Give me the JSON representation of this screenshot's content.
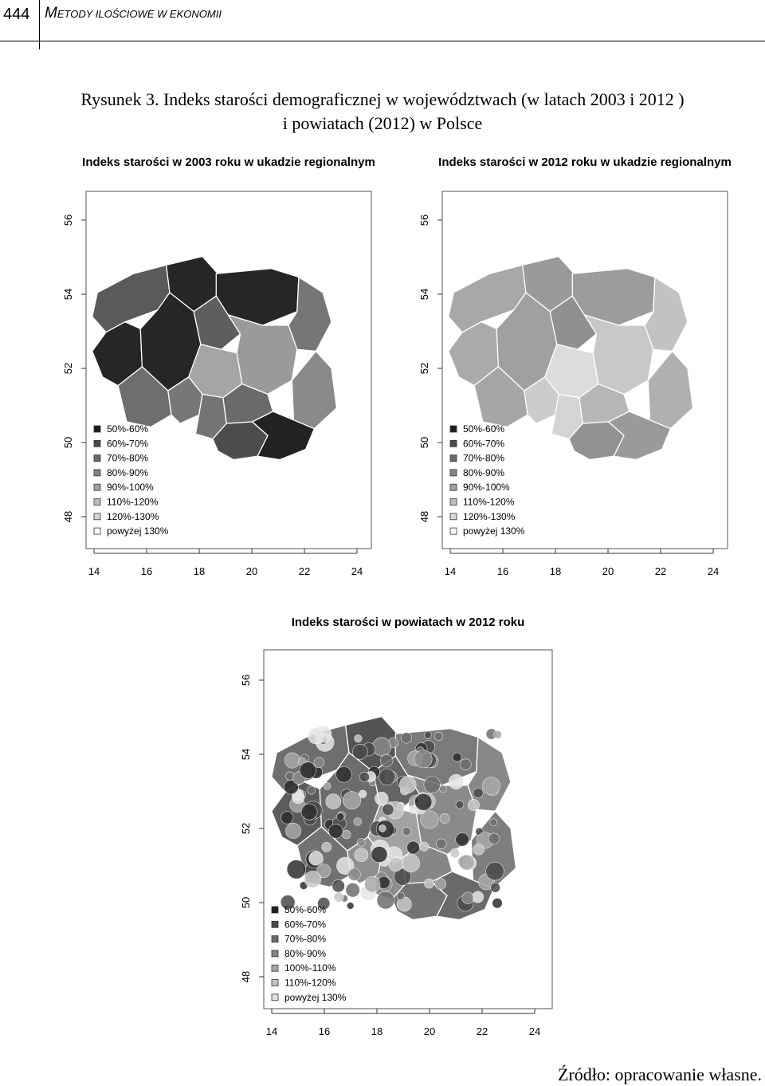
{
  "header": {
    "page_number": "444",
    "journal_first": "M",
    "journal_rest": "etody ilościowe w ekonomii"
  },
  "figure": {
    "caption_line1": "Rysunek 3. Indeks starości demograficznej w województwach (w latach 2003 i 2012 )",
    "caption_line2": "i powiatach (2012) w Polsce",
    "source": "Źródło: opracowanie własne."
  },
  "maps": [
    {
      "title": "Indeks starości w 2003 roku w ukadzie regionalnym",
      "x_ticks": [
        "14",
        "16",
        "18",
        "20",
        "22",
        "24"
      ],
      "y_ticks": [
        "48",
        "50",
        "52",
        "54",
        "56"
      ],
      "legend": [
        "50%-60%",
        "60%-70%",
        "70%-80%",
        "80%-90%",
        "90%-100%",
        "110%-120%",
        "120%-130%",
        "powyżej 130%"
      ],
      "legend_fills": [
        "#1e1e1e",
        "#4a4a4a",
        "#6a6a6a",
        "#858585",
        "#a2a2a2",
        "#bebebe",
        "#d6d6d6",
        "#ffffff"
      ],
      "region_fills": [
        "#5a5a5a",
        "#262626",
        "#262626",
        "#262626",
        "#262626",
        "#5e5e5e",
        "#767676",
        "#9a9a9a",
        "#8a8a8a",
        "#6e6e6e",
        "#a5a5a5",
        "#777777",
        "#747474",
        "#6a6a6a",
        "#4c4c4c",
        "#222222"
      ]
    },
    {
      "title": "Indeks starości w 2012 roku w ukadzie regionalnym",
      "x_ticks": [
        "14",
        "16",
        "18",
        "20",
        "22",
        "24"
      ],
      "y_ticks": [
        "48",
        "50",
        "52",
        "54",
        "56"
      ],
      "legend": [
        "50%-60%",
        "60%-70%",
        "70%-80%",
        "80%-90%",
        "90%-100%",
        "110%-120%",
        "120%-130%",
        "powyżej 130%"
      ],
      "legend_fills": [
        "#1e1e1e",
        "#4a4a4a",
        "#6a6a6a",
        "#858585",
        "#a2a2a2",
        "#bebebe",
        "#d6d6d6",
        "#ffffff"
      ],
      "region_fills": [
        "#a8a8a8",
        "#9a9a9a",
        "#9c9c9c",
        "#aaaaaa",
        "#a0a0a0",
        "#909090",
        "#c2c2c2",
        "#c8c8c8",
        "#b0b0b0",
        "#a6a6a6",
        "#dcdcdc",
        "#cccccc",
        "#d4d4d4",
        "#b6b6b6",
        "#929292",
        "#9a9a9a"
      ]
    },
    {
      "title": "Indeks starości w powiatach w 2012 roku",
      "x_ticks": [
        "14",
        "16",
        "18",
        "20",
        "22",
        "24"
      ],
      "y_ticks": [
        "48",
        "50",
        "52",
        "54",
        "56"
      ],
      "legend": [
        "50%-60%",
        "60%-70%",
        "70%-80%",
        "80%-90%",
        "100%-110%",
        "110%-120%",
        "powyżej 130%"
      ],
      "legend_fills": [
        "#1e1e1e",
        "#4a4a4a",
        "#6a6a6a",
        "#858585",
        "#a8a8a8",
        "#c4c4c4",
        "#e2e2e2"
      ],
      "region_fills": [
        "#6e6e6e",
        "#545454",
        "#7a7a7a",
        "#5c5c5c",
        "#6c6c6c",
        "#646464",
        "#888888",
        "#8a8a8a",
        "#7e7e7e",
        "#727272",
        "#a2a2a2",
        "#8e8e8e",
        "#8c8c8c",
        "#868686",
        "#747474",
        "#6a6a6a"
      ]
    }
  ]
}
